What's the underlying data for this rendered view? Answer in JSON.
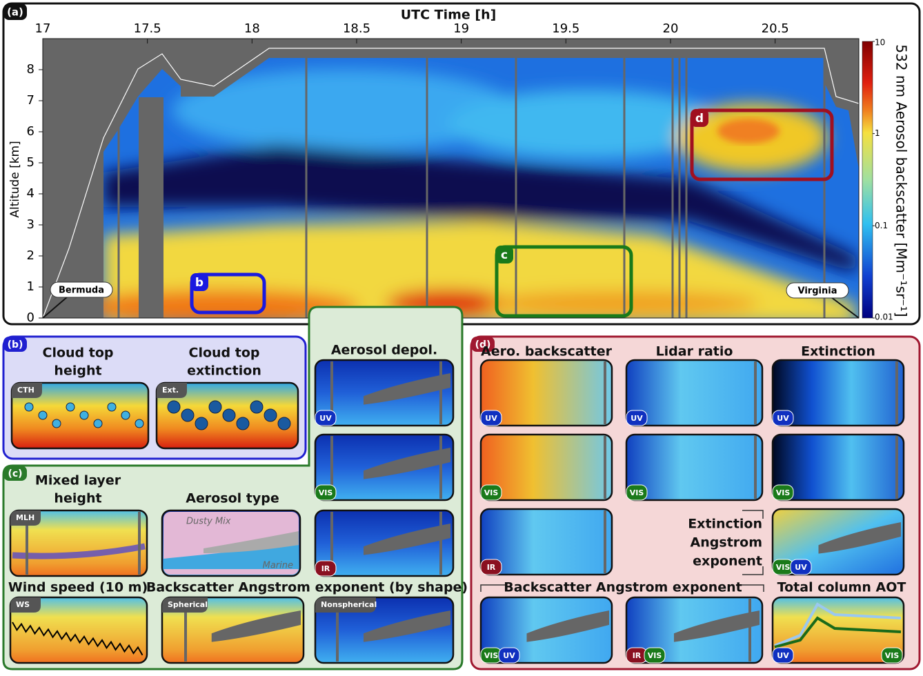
{
  "panel_a": {
    "label": "(a)",
    "x_label": "UTC Time  [h]",
    "x_ticks": [
      17,
      17.5,
      18,
      18.5,
      19,
      19.5,
      20,
      20.5
    ],
    "x_range": [
      17,
      20.9
    ],
    "y_label": "Altitude [km]",
    "y_ticks": [
      0,
      1,
      2,
      3,
      4,
      5,
      6,
      7,
      8
    ],
    "y_range": [
      0,
      9
    ],
    "colorbar_label": "532 nm Aerosol backscatter [Mm⁻¹sr⁻¹]",
    "colorbar_ticks": [
      10,
      1,
      0.1,
      0.01
    ],
    "places": [
      "Bermuda",
      "Virginia"
    ],
    "boxes": [
      "b",
      "c",
      "d"
    ]
  },
  "panel_b": {
    "label": "(b)",
    "items": [
      {
        "title": [
          "Cloud top",
          "height"
        ],
        "badge": "CTH"
      },
      {
        "title": [
          "Cloud top",
          "extinction"
        ],
        "badge": "Ext."
      }
    ]
  },
  "panel_c": {
    "label": "(c)",
    "mlh": {
      "title": [
        "Mixed layer",
        "height"
      ],
      "badge": "MLH"
    },
    "aerosol_type": {
      "title": "Aerosol type",
      "classes": [
        "Dusty Mix",
        "Marine"
      ]
    },
    "wind": {
      "title": "Wind speed (10 m)",
      "badge": "WS"
    },
    "bae_shape": {
      "title": "Backscatter Angstrom exponent (by shape)",
      "badges": [
        "Spherical",
        "Nonspherical"
      ]
    },
    "depol": {
      "title": "Aerosol depol."
    }
  },
  "panel_d": {
    "label": "(d)",
    "columns": [
      "Aero. backscatter",
      "Lidar ratio",
      "Extinction"
    ],
    "ext_angstrom": [
      "Extinction",
      "Angstrom",
      "exponent"
    ],
    "bsc_angstrom": "Backscatter Angstrom exponent",
    "aot": "Total column AOT"
  },
  "wavelengths": [
    "UV",
    "VIS",
    "IR"
  ]
}
